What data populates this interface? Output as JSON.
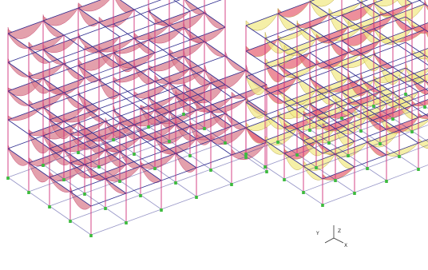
{
  "panels": [
    {
      "id": "left-frame",
      "diagram_color": "#d98090",
      "diagram_stroke": "#c03060",
      "support_color": "#3dbb3d"
    },
    {
      "id": "right-frame",
      "diagram_color": "#f2e98a",
      "diagram_color_alt": "#e76a7a",
      "diagram_stroke": "#b09a30",
      "support_color": "#3dbb3d"
    }
  ],
  "axes": {
    "x_label": "X",
    "y_label": "Y",
    "z_label": "Z"
  },
  "colors": {
    "beam": "#2d2b8f",
    "column": "#d0307a"
  }
}
